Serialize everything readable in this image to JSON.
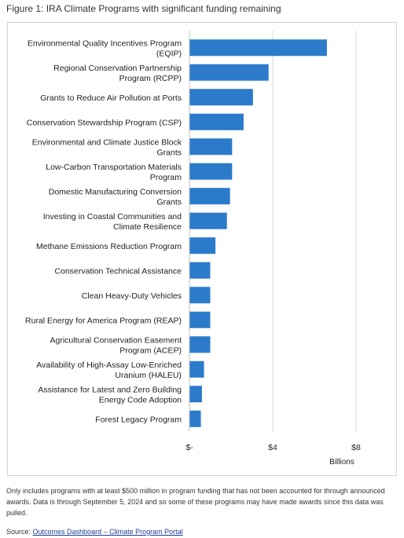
{
  "figure_title": "Figure 1: IRA Climate Programs with significant funding remaining",
  "footnote": "Only includes programs with at least $500 million in program funding that has not been accounted for through announced awards. Data is through September 5, 2024 and so some of these programs may have made awards since this data was pulled.",
  "source": {
    "label": "Source: ",
    "link_text": "Outcomes Dashboard – Climate Program Portal"
  },
  "colors": {
    "bar": "#2b7bca",
    "gridline": "#d9d9d9",
    "frame": "#d4d4d4"
  },
  "chart_data": {
    "type": "bar",
    "orientation": "horizontal",
    "title": "",
    "xlabel": "Billions",
    "ylabel": "",
    "xlim": [
      0,
      8
    ],
    "x_ticks": [
      0,
      4,
      8
    ],
    "x_tick_labels": [
      "$-",
      "$4",
      "$8"
    ],
    "grid": true,
    "categories": [
      [
        "Environmental Quality Incentives Program",
        "(EQIP)"
      ],
      [
        "Regional Conservation Partnership",
        "Program (RCPP)"
      ],
      [
        "Grants to Reduce Air Pollution at Ports"
      ],
      [
        "Conservation Stewardship Program (CSP)"
      ],
      [
        "Environmental and Climate Justice Block",
        "Grants"
      ],
      [
        "Low-Carbon Transportation Materials",
        "Program"
      ],
      [
        "Domestic Manufacturing Conversion",
        "Grants"
      ],
      [
        "Investing in Coastal Communities and",
        "Climate Resilience"
      ],
      [
        "Methane Emissions Reduction Program"
      ],
      [
        "Conservation Technical Assistance"
      ],
      [
        "Clean Heavy-Duty Vehicles"
      ],
      [
        "Rural Energy for America Program (REAP)"
      ],
      [
        "Agricultural Conservation Easement",
        "Program (ACEP)"
      ],
      [
        "Availability of High-Assay Low-Enriched",
        "Uranium (HALEU)"
      ],
      [
        "Assistance for Latest and Zero Building",
        "Energy Code Adoption"
      ],
      [
        "Forest Legacy Program"
      ]
    ],
    "values": [
      6.6,
      3.8,
      3.05,
      2.6,
      2.05,
      2.05,
      1.95,
      1.8,
      1.25,
      1.0,
      1.0,
      1.0,
      1.0,
      0.7,
      0.6,
      0.55
    ]
  }
}
